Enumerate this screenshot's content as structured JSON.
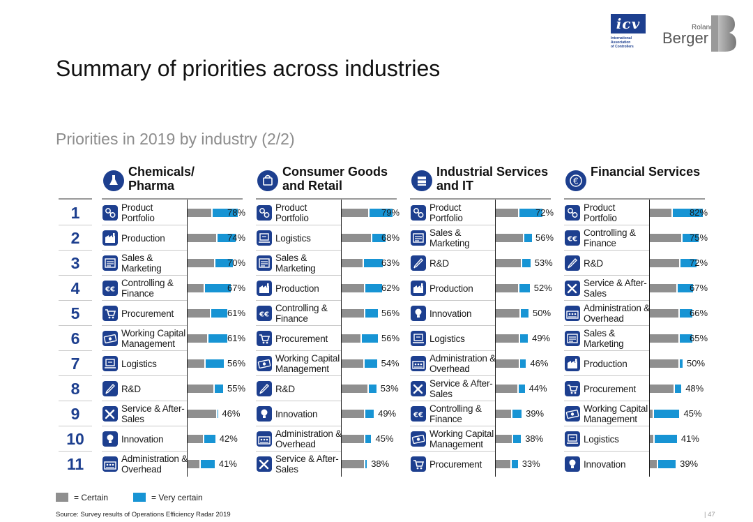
{
  "brand": {
    "icv_text": "icv",
    "icv_sub": [
      "International",
      "Association",
      "of Controllers"
    ],
    "roland": "Roland",
    "berger": "Berger"
  },
  "title": "Summary of priorities across industries",
  "subtitle": "Priorities in 2019 by industry (2/2)",
  "colors": {
    "certain": "#8f8f8f",
    "very_certain": "#1794d4",
    "accent": "#1d3f8f"
  },
  "ranks": [
    "1",
    "2",
    "3",
    "4",
    "5",
    "6",
    "7",
    "8",
    "9",
    "10",
    "11"
  ],
  "legend": {
    "certain": "= Certain",
    "very_certain": "= Very certain"
  },
  "source": "Source: Survey results of Operations Efficiency Radar 2019",
  "page": "47",
  "chart_data": [
    {
      "type": "bar",
      "title": "Chemicals/ Pharma",
      "icon": "flask-icon",
      "items": [
        {
          "label": "Product Portfolio",
          "icon": "portfolio-icon",
          "certain": 38,
          "very_certain": 40,
          "total": "78%"
        },
        {
          "label": "Production",
          "icon": "factory-icon",
          "certain": 46,
          "very_certain": 28,
          "total": "74%"
        },
        {
          "label": "Sales & Marketing",
          "icon": "sales-icon",
          "certain": 42,
          "very_certain": 28,
          "total": "70%"
        },
        {
          "label": "Controlling & Finance",
          "icon": "euro-icon",
          "certain": 26,
          "very_certain": 41,
          "total": "67%"
        },
        {
          "label": "Procurement",
          "icon": "cart-icon",
          "certain": 35,
          "very_certain": 26,
          "total": "61%"
        },
        {
          "label": "Working Capital Management",
          "icon": "money-icon",
          "certain": 31,
          "very_certain": 30,
          "total": "61%"
        },
        {
          "label": "Logistics",
          "icon": "logistics-icon",
          "certain": 27,
          "very_certain": 29,
          "total": "56%"
        },
        {
          "label": "R&D",
          "icon": "pen-icon",
          "certain": 41,
          "very_certain": 14,
          "total": "55%"
        },
        {
          "label": "Service & After-Sales",
          "icon": "tools-icon",
          "certain": 45,
          "very_certain": 1,
          "total": "46%"
        },
        {
          "label": "Innovation",
          "icon": "bulb-icon",
          "certain": 24,
          "very_certain": 18,
          "total": "42%"
        },
        {
          "label": "Administration & Overhead",
          "icon": "admin-icon",
          "certain": 19,
          "very_certain": 22,
          "total": "41%"
        }
      ]
    },
    {
      "type": "bar",
      "title": "Consumer Goods and Retail",
      "icon": "bag-icon",
      "items": [
        {
          "label": "Product Portfolio",
          "icon": "portfolio-icon",
          "certain": 42,
          "very_certain": 37,
          "total": "79%"
        },
        {
          "label": "Logistics",
          "icon": "logistics-icon",
          "certain": 47,
          "very_certain": 21,
          "total": "68%"
        },
        {
          "label": "Sales & Marketing",
          "icon": "sales-icon",
          "certain": 33,
          "very_certain": 30,
          "total": "63%"
        },
        {
          "label": "Production",
          "icon": "factory-icon",
          "certain": 36,
          "very_certain": 26,
          "total": "62%"
        },
        {
          "label": "Controlling & Finance",
          "icon": "euro-icon",
          "certain": 36,
          "very_certain": 20,
          "total": "56%"
        },
        {
          "label": "Procurement",
          "icon": "cart-icon",
          "certain": 30,
          "very_certain": 26,
          "total": "56%"
        },
        {
          "label": "Working Capital Management",
          "icon": "money-icon",
          "certain": 34,
          "very_certain": 20,
          "total": "54%"
        },
        {
          "label": "R&D",
          "icon": "pen-icon",
          "certain": 41,
          "very_certain": 12,
          "total": "53%"
        },
        {
          "label": "Innovation",
          "icon": "bulb-icon",
          "certain": 36,
          "very_certain": 13,
          "total": "49%"
        },
        {
          "label": "Administration & Overhead",
          "icon": "admin-icon",
          "certain": 36,
          "very_certain": 9,
          "total": "45%"
        },
        {
          "label": "Service & After-Sales",
          "icon": "tools-icon",
          "certain": 35,
          "very_certain": 3,
          "total": "38%"
        }
      ]
    },
    {
      "type": "bar",
      "title": "Industrial Services and IT",
      "icon": "server-icon",
      "items": [
        {
          "label": "Product Portfolio",
          "icon": "portfolio-icon",
          "certain": 35,
          "very_certain": 37,
          "total": "72%"
        },
        {
          "label": "Sales & Marketing",
          "icon": "sales-icon",
          "certain": 43,
          "very_certain": 13,
          "total": "56%"
        },
        {
          "label": "R&D",
          "icon": "pen-icon",
          "certain": 40,
          "very_certain": 13,
          "total": "53%"
        },
        {
          "label": "Production",
          "icon": "factory-icon",
          "certain": 35,
          "very_certain": 17,
          "total": "52%"
        },
        {
          "label": "Innovation",
          "icon": "bulb-icon",
          "certain": 38,
          "very_certain": 12,
          "total": "50%"
        },
        {
          "label": "Logistics",
          "icon": "logistics-icon",
          "certain": 37,
          "very_certain": 12,
          "total": "49%"
        },
        {
          "label": "Administration & Overhead",
          "icon": "admin-icon",
          "certain": 37,
          "very_certain": 9,
          "total": "46%"
        },
        {
          "label": "Service & After-Sales",
          "icon": "tools-icon",
          "certain": 34,
          "very_certain": 10,
          "total": "44%"
        },
        {
          "label": "Controlling & Finance",
          "icon": "euro-icon",
          "certain": 24,
          "very_certain": 15,
          "total": "39%"
        },
        {
          "label": "Working Capital Management",
          "icon": "money-icon",
          "certain": 25,
          "very_certain": 13,
          "total": "38%"
        },
        {
          "label": "Procurement",
          "icon": "cart-icon",
          "certain": 23,
          "very_certain": 10,
          "total": "33%"
        }
      ]
    },
    {
      "type": "bar",
      "title": "Financial Services",
      "icon": "euro-circle-icon",
      "items": [
        {
          "label": "Product Portfolio",
          "icon": "portfolio-icon",
          "certain": 34,
          "very_certain": 48,
          "total": "82%"
        },
        {
          "label": "Controlling & Finance",
          "icon": "euro-icon",
          "certain": 50,
          "very_certain": 25,
          "total": "75%"
        },
        {
          "label": "R&D",
          "icon": "pen-icon",
          "certain": 47,
          "very_certain": 25,
          "total": "72%"
        },
        {
          "label": "Service & After-Sales",
          "icon": "tools-icon",
          "certain": 42,
          "very_certain": 25,
          "total": "67%"
        },
        {
          "label": "Administration & Overhead",
          "icon": "admin-icon",
          "certain": 46,
          "very_certain": 20,
          "total": "66%"
        },
        {
          "label": "Sales & Marketing",
          "icon": "sales-icon",
          "certain": 45,
          "very_certain": 20,
          "total": "65%"
        },
        {
          "label": "Production",
          "icon": "factory-icon",
          "certain": 46,
          "very_certain": 4,
          "total": "50%"
        },
        {
          "label": "Procurement",
          "icon": "cart-icon",
          "certain": 38,
          "very_certain": 10,
          "total": "48%"
        },
        {
          "label": "Working Capital Management",
          "icon": "money-icon",
          "certain": 4,
          "very_certain": 41,
          "total": "45%"
        },
        {
          "label": "Logistics",
          "icon": "logistics-icon",
          "certain": 5,
          "very_certain": 36,
          "total": "41%"
        },
        {
          "label": "Innovation",
          "icon": "bulb-icon",
          "certain": 11,
          "very_certain": 28,
          "total": "39%"
        }
      ]
    }
  ]
}
